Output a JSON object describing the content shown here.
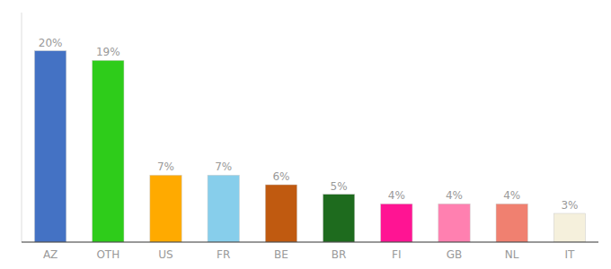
{
  "chart_data": {
    "type": "bar",
    "categories": [
      "AZ",
      "OTH",
      "US",
      "FR",
      "BE",
      "BR",
      "FI",
      "GB",
      "NL",
      "IT"
    ],
    "values": [
      20,
      19,
      7,
      7,
      6,
      5,
      4,
      4,
      4,
      3
    ],
    "value_labels": [
      "20%",
      "19%",
      "7%",
      "7%",
      "6%",
      "5%",
      "4%",
      "4%",
      "4%",
      "3%"
    ],
    "colors": [
      "#4472c4",
      "#2ecc1a",
      "#ffaa00",
      "#87ceeb",
      "#c05a10",
      "#1e6b1e",
      "#ff1493",
      "#ff80b0",
      "#f08070",
      "#f5f0dc"
    ],
    "ylim": [
      0,
      24
    ],
    "data_labels": true,
    "tick_labels": "x",
    "grid": false
  }
}
